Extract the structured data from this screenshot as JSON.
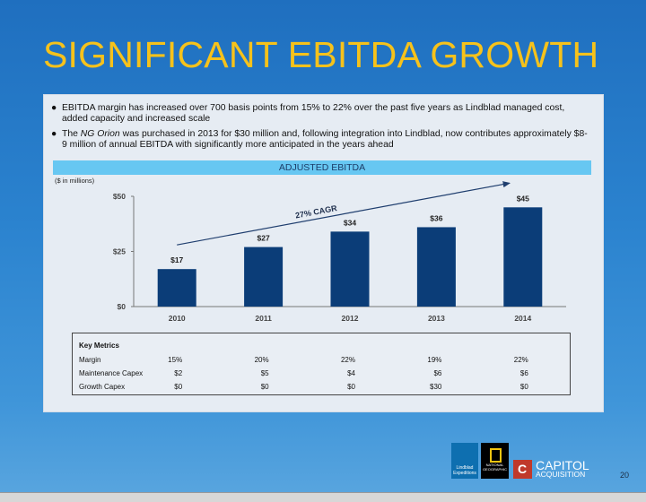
{
  "slide": {
    "title": "SIGNIFICANT EBITDA GROWTH",
    "page_number": "20"
  },
  "bullets": {
    "dot": "●",
    "b1": "EBITDA margin has increased over 700 basis points from 15% to 22% over the past five years as Lindblad managed cost, added capacity and increased scale",
    "b2_pre": "The ",
    "b2_em": "NG Orion",
    "b2_post": " was purchased in 2013 for $30 million and, following integration into Lindblad, now contributes approximately $8-9 million of annual EBITDA with significantly more anticipated in the years ahead"
  },
  "banner": "ADJUSTED EBITDA",
  "units": "($ in millions)",
  "chart_data": {
    "type": "bar",
    "categories": [
      "2010",
      "2011",
      "2012",
      "2013",
      "2014"
    ],
    "values": [
      17,
      27,
      34,
      36,
      45
    ],
    "value_labels": [
      "$17",
      "$27",
      "$34",
      "$36",
      "$45"
    ],
    "ylim": [
      0,
      50
    ],
    "yticks": [
      0,
      25,
      50
    ],
    "ytick_labels": [
      "$0",
      "$25",
      "$50"
    ],
    "annotation": "27% CAGR",
    "bar_color": "#0b3d78"
  },
  "metrics": {
    "header": "Key Metrics",
    "rows": [
      {
        "label": "Margin",
        "values": [
          "15%",
          "20%",
          "22%",
          "19%",
          "22%"
        ]
      },
      {
        "label": "Maintenance Capex",
        "values": [
          "$2",
          "$5",
          "$4",
          "$6",
          "$6"
        ]
      },
      {
        "label": "Growth Capex",
        "values": [
          "$0",
          "$0",
          "$0",
          "$30",
          "$0"
        ]
      }
    ]
  },
  "logos": {
    "capitol_line1": "CAPITOL",
    "capitol_line2": "ACQUISITION",
    "cap_letter": "C",
    "lindblad": "Lindblad Expeditions",
    "natgeo": "NATIONAL GEOGRAPHIC"
  }
}
